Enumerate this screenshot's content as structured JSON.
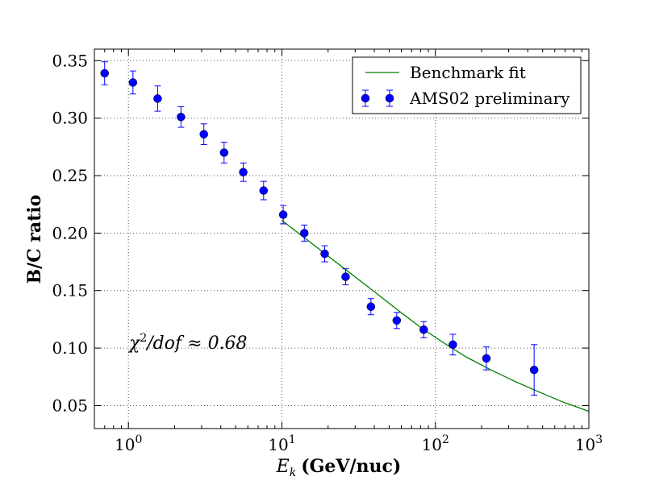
{
  "chart_data": {
    "type": "scatter",
    "title": "",
    "xlabel_symbol": "E",
    "xlabel_subscript": "k",
    "xlabel_units": "(GeV/nuc)",
    "ylabel": "B/C ratio",
    "xscale": "log",
    "xlim": [
      0.6,
      1000
    ],
    "ylim": [
      0.03,
      0.36
    ],
    "grid": true,
    "legend_position": "top-right",
    "x_tick_labels": [
      {
        "value": 1,
        "base": "10",
        "exp": "0"
      },
      {
        "value": 10,
        "base": "10",
        "exp": "1"
      },
      {
        "value": 100,
        "base": "10",
        "exp": "2"
      },
      {
        "value": 1000,
        "base": "10",
        "exp": "3"
      }
    ],
    "y_ticks": [
      {
        "value": 0.05,
        "label": "0.05"
      },
      {
        "value": 0.1,
        "label": "0.10"
      },
      {
        "value": 0.15,
        "label": "0.15"
      },
      {
        "value": 0.2,
        "label": "0.20"
      },
      {
        "value": 0.25,
        "label": "0.25"
      },
      {
        "value": 0.3,
        "label": "0.30"
      },
      {
        "value": 0.35,
        "label": "0.35"
      }
    ],
    "series": [
      {
        "name": "Benchmark fit",
        "type": "line",
        "color": "#008000",
        "x": [
          10,
          14,
          20,
          28,
          40,
          57,
          80,
          115,
          160,
          230,
          330,
          470,
          680,
          1000
        ],
        "y": [
          0.211,
          0.196,
          0.18,
          0.165,
          0.149,
          0.133,
          0.118,
          0.104,
          0.092,
          0.081,
          0.071,
          0.062,
          0.053,
          0.045
        ]
      },
      {
        "name": "AMS02 preliminary",
        "type": "errorbar",
        "color": "#0000ff",
        "x": [
          0.7,
          1.07,
          1.55,
          2.2,
          3.1,
          4.2,
          5.6,
          7.6,
          10.2,
          14.0,
          19.0,
          26.0,
          38.0,
          56.0,
          84.0,
          130.0,
          215.0,
          440.0
        ],
        "y": [
          0.339,
          0.331,
          0.317,
          0.301,
          0.286,
          0.27,
          0.253,
          0.237,
          0.216,
          0.2,
          0.182,
          0.162,
          0.136,
          0.124,
          0.116,
          0.103,
          0.091,
          0.081
        ],
        "err": [
          0.01,
          0.01,
          0.011,
          0.009,
          0.009,
          0.009,
          0.008,
          0.008,
          0.008,
          0.007,
          0.007,
          0.007,
          0.007,
          0.007,
          0.007,
          0.009,
          0.01,
          0.022
        ]
      }
    ],
    "annotation_parts": {
      "chi": "χ",
      "power": "2",
      "dof": "/dof ≈ 0.68"
    }
  }
}
